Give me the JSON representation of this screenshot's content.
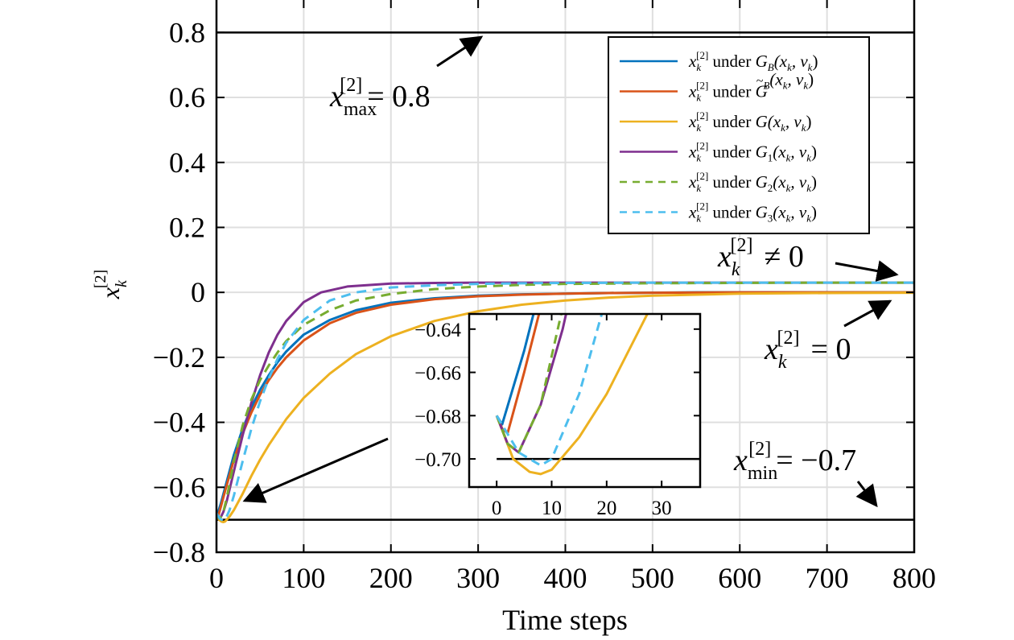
{
  "chart_data": {
    "type": "line",
    "xlabel": "Time steps",
    "ylabel": {
      "base": "x",
      "sub": "k",
      "sup": "[2]"
    },
    "xlim": [
      0,
      800
    ],
    "ylim": [
      -0.8,
      0.9
    ],
    "xticks": [
      0,
      100,
      200,
      300,
      400,
      500,
      600,
      700,
      800
    ],
    "xtick_labels": [
      "0",
      "100",
      "200",
      "300",
      "400",
      "500",
      "600",
      "700",
      "800"
    ],
    "yticks": [
      -0.8,
      -0.6,
      -0.4,
      -0.2,
      0,
      0.2,
      0.4,
      0.6,
      0.8
    ],
    "ytick_labels": [
      "−0.8",
      "−0.6",
      "−0.4",
      "−0.2",
      "0",
      "0.2",
      "0.4",
      "0.6",
      "0.8"
    ],
    "grid": true,
    "legend_position": "top-right",
    "constraints": [
      {
        "name": "x_max",
        "value": 0.8,
        "color": "#000000"
      },
      {
        "name": "x_min",
        "value": -0.7,
        "color": "#000000"
      }
    ],
    "series": [
      {
        "legend": {
          "pre": "under",
          "fn": "G",
          "fn_sub": "B",
          "tilde": false
        },
        "color": "#0072BD",
        "dash": false,
        "x": [
          0,
          1,
          5,
          10,
          20,
          30,
          40,
          50,
          60,
          70,
          80,
          100,
          130,
          160,
          200,
          250,
          300,
          350,
          400,
          450,
          500,
          550,
          600,
          700,
          800
        ],
        "y": [
          -0.68,
          -0.684,
          -0.65,
          -0.6,
          -0.5,
          -0.42,
          -0.355,
          -0.3,
          -0.255,
          -0.215,
          -0.182,
          -0.13,
          -0.085,
          -0.055,
          -0.032,
          -0.018,
          -0.01,
          -0.006,
          -0.004,
          -0.002,
          -0.001,
          0,
          0,
          0,
          0
        ]
      },
      {
        "legend": {
          "pre": "under",
          "fn": "G",
          "fn_sub": "B",
          "tilde": true
        },
        "color": "#D95319",
        "dash": false,
        "x": [
          0,
          1,
          2,
          5,
          10,
          20,
          30,
          40,
          50,
          60,
          70,
          80,
          100,
          130,
          160,
          200,
          250,
          300,
          350,
          400,
          450,
          500,
          600,
          700,
          800
        ],
        "y": [
          -0.68,
          -0.686,
          -0.688,
          -0.66,
          -0.61,
          -0.515,
          -0.435,
          -0.37,
          -0.315,
          -0.27,
          -0.232,
          -0.2,
          -0.148,
          -0.095,
          -0.063,
          -0.038,
          -0.021,
          -0.012,
          -0.007,
          -0.004,
          -0.002,
          -0.001,
          0,
          0,
          0
        ]
      },
      {
        "legend": {
          "pre": "under",
          "fn": "G",
          "fn_sub": "",
          "tilde": false
        },
        "color": "#EDB120",
        "dash": false,
        "x": [
          0,
          3,
          6,
          8,
          10,
          15,
          20,
          30,
          40,
          50,
          60,
          80,
          100,
          130,
          160,
          200,
          250,
          300,
          350,
          400,
          450,
          500,
          600,
          700,
          800
        ],
        "y": [
          -0.68,
          -0.7,
          -0.706,
          -0.707,
          -0.705,
          -0.69,
          -0.67,
          -0.62,
          -0.565,
          -0.515,
          -0.47,
          -0.39,
          -0.325,
          -0.25,
          -0.19,
          -0.135,
          -0.088,
          -0.058,
          -0.038,
          -0.025,
          -0.016,
          -0.01,
          -0.004,
          -0.002,
          -0.001
        ]
      },
      {
        "legend": {
          "pre": "under",
          "fn": "G",
          "fn_sub": "1",
          "tilde": false
        },
        "color": "#7E2F8E",
        "dash": false,
        "x": [
          0,
          2,
          4,
          8,
          12,
          20,
          30,
          40,
          50,
          60,
          70,
          80,
          100,
          120,
          150,
          200,
          250,
          300,
          400,
          500,
          600,
          700,
          800
        ],
        "y": [
          -0.68,
          -0.693,
          -0.697,
          -0.675,
          -0.64,
          -0.55,
          -0.44,
          -0.34,
          -0.255,
          -0.185,
          -0.13,
          -0.088,
          -0.03,
          0.0,
          0.018,
          0.027,
          0.029,
          0.03,
          0.03,
          0.03,
          0.03,
          0.03,
          0.03
        ]
      },
      {
        "legend": {
          "pre": "under",
          "fn": "G",
          "fn_sub": "2",
          "tilde": false
        },
        "color": "#77AC30",
        "dash": true,
        "x": [
          0,
          2,
          4,
          8,
          12,
          20,
          30,
          40,
          50,
          60,
          70,
          80,
          100,
          130,
          160,
          200,
          250,
          300,
          350,
          400,
          500,
          600,
          700,
          800
        ],
        "y": [
          -0.68,
          -0.693,
          -0.697,
          -0.675,
          -0.63,
          -0.52,
          -0.41,
          -0.33,
          -0.27,
          -0.225,
          -0.185,
          -0.15,
          -0.1,
          -0.055,
          -0.025,
          -0.005,
          0.01,
          0.018,
          0.023,
          0.026,
          0.028,
          0.029,
          0.03,
          0.03
        ]
      },
      {
        "legend": {
          "pre": "under",
          "fn": "G",
          "fn_sub": "3",
          "tilde": false
        },
        "color": "#4DBEEE",
        "dash": true,
        "x": [
          0,
          4,
          8,
          10,
          15,
          20,
          30,
          40,
          50,
          60,
          70,
          80,
          100,
          130,
          160,
          200,
          250,
          300,
          350,
          400,
          500,
          600,
          700,
          800
        ],
        "y": [
          -0.68,
          -0.697,
          -0.703,
          -0.7,
          -0.67,
          -0.625,
          -0.52,
          -0.42,
          -0.335,
          -0.265,
          -0.205,
          -0.155,
          -0.085,
          -0.025,
          0.0,
          0.015,
          0.022,
          0.026,
          0.028,
          0.029,
          0.03,
          0.03,
          0.03,
          0.03
        ]
      }
    ],
    "inset": {
      "xlim": [
        -5,
        37
      ],
      "ylim": [
        -0.713,
        -0.633
      ],
      "xticks": [
        0,
        10,
        20,
        30
      ],
      "xtick_labels": [
        "0",
        "10",
        "20",
        "30"
      ],
      "yticks": [
        -0.64,
        -0.66,
        -0.68,
        -0.7
      ],
      "ytick_labels": [
        "−0.64",
        "−0.66",
        "−0.68",
        "−0.70"
      ],
      "constraint_value": -0.7
    },
    "annotations": [
      {
        "base": "x",
        "sub": "max",
        "sup": "[2]",
        "rest": "= 0.8"
      },
      {
        "base": "x",
        "sub": "k",
        "sup": "[2]",
        "rest": "≠ 0"
      },
      {
        "base": "x",
        "sub": "k",
        "sup": "[2]",
        "rest": "= 0"
      },
      {
        "base": "x",
        "sub": "min",
        "sup": "[2]",
        "rest": "= −0.7"
      }
    ],
    "legend_common": {
      "var": "x",
      "var_sub": "k",
      "var_sup": "[2]",
      "args": "(x",
      "args_sub": "k",
      "args_mid": ", v",
      "args_sub2": "k",
      "args_end": ")"
    }
  }
}
